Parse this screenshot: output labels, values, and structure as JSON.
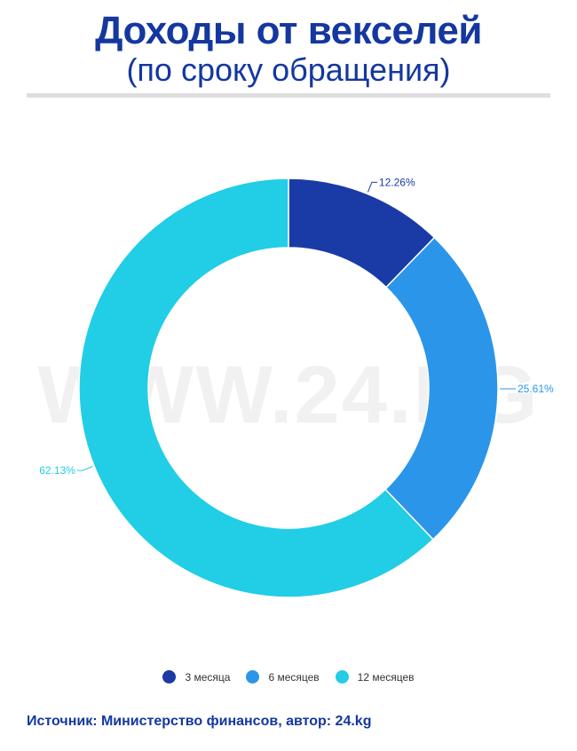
{
  "title": "Доходы от векселей",
  "subtitle": "(по сроку обращения)",
  "watermark": "WWW.24.KG",
  "source": "Источник: Министерство финансов, автор: 24.kg",
  "colors": {
    "title": "#1437a0",
    "source": "#1437a0",
    "watermark": "#f1f1f1"
  },
  "chart_data": {
    "type": "pie",
    "variant": "donut",
    "categories": [
      "3 месяца",
      "6 месяцев",
      "12 месяцев"
    ],
    "values": [
      12.26,
      25.61,
      62.13
    ],
    "labels": [
      "12.26%",
      "25.61%",
      "62.13%"
    ],
    "colors": [
      "#1a3aa6",
      "#2b95ea",
      "#22cde6"
    ],
    "label_colors": [
      "#1a3aa6",
      "#2b95ea",
      "#22cde6"
    ],
    "legend_position": "bottom"
  }
}
